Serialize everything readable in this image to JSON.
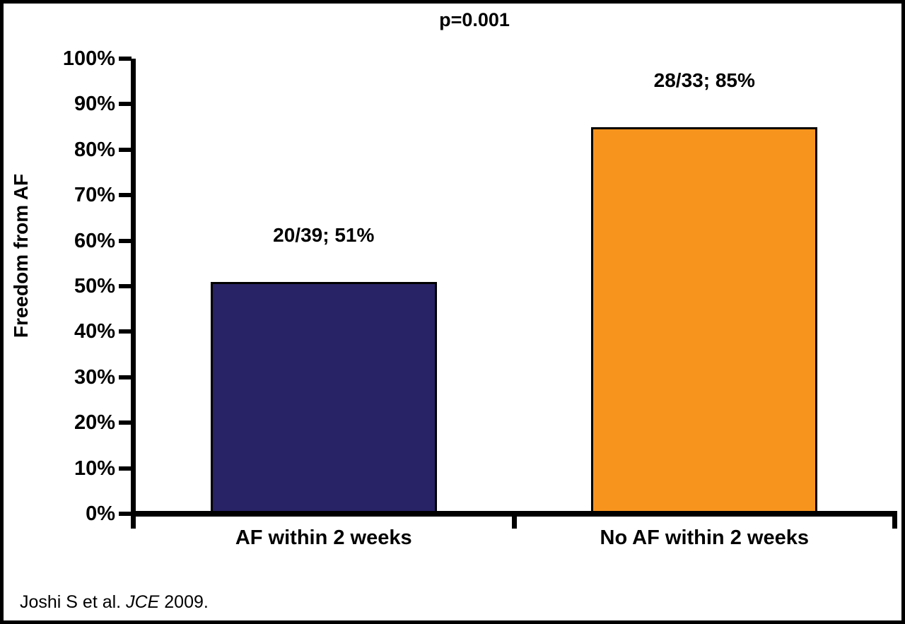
{
  "chart_data": {
    "type": "bar",
    "title": "p=0.001",
    "xlabel": "",
    "ylabel": "Freedom from AF",
    "categories": [
      "AF within 2 weeks",
      "No AF within 2 weeks"
    ],
    "values": [
      51,
      85
    ],
    "bar_labels": [
      "20/39; 51%",
      "28/33; 85%"
    ],
    "bar_colors": [
      "#272366",
      "#F7941E"
    ],
    "bar_border_color": "#000000",
    "ylim": [
      0,
      100
    ],
    "ytick_values": [
      0,
      10,
      20,
      30,
      40,
      50,
      60,
      70,
      80,
      90,
      100
    ],
    "ytick_labels": [
      "0%",
      "10%",
      "20%",
      "30%",
      "40%",
      "50%",
      "60%",
      "70%",
      "80%",
      "90%",
      "100%"
    ],
    "grid": false,
    "legend_position": "none",
    "axis_color": "#000000",
    "background_color": "#FFFFFF"
  },
  "footer": {
    "citation_prefix": "Joshi S et al. ",
    "citation_journal": "JCE",
    "citation_suffix": " 2009."
  }
}
